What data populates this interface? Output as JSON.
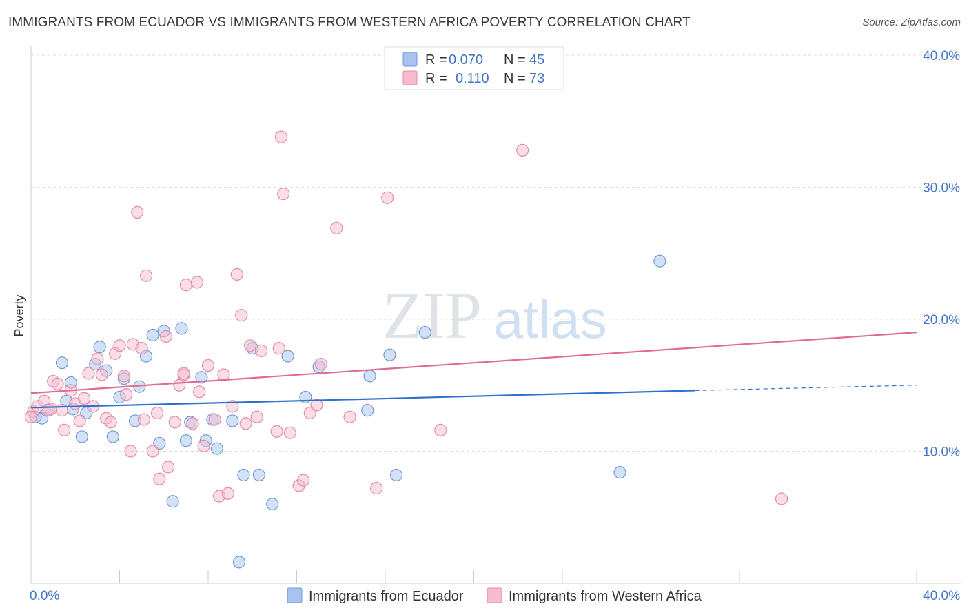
{
  "title": "IMMIGRANTS FROM ECUADOR VS IMMIGRANTS FROM WESTERN AFRICA POVERTY CORRELATION CHART",
  "source": "Source: ZipAtlas.com",
  "watermark": {
    "zip": "ZIP",
    "atlas": "atlas"
  },
  "legend": {
    "rows": [
      {
        "r_label": "R =",
        "r_value": "0.070",
        "n_label": "N =",
        "n_value": "45",
        "color": "#a8c4ee",
        "stroke": "#6f98d8"
      },
      {
        "r_label": "R =",
        "r_value": "0.110",
        "n_label": "N =",
        "n_value": "73",
        "color": "#f6bccd",
        "stroke": "#e58aa8"
      }
    ]
  },
  "chart_data": {
    "type": "scatter",
    "ylabel": "Poverty",
    "xlim": [
      0,
      40
    ],
    "ylim": [
      0,
      40
    ],
    "x_tick_labels": [
      "0.0%",
      "40.0%"
    ],
    "y_ticks": [
      10,
      20,
      30,
      40
    ],
    "y_tick_labels": [
      "10.0%",
      "20.0%",
      "30.0%",
      "40.0%"
    ],
    "grid": true,
    "series": [
      {
        "name": "Immigrants from Ecuador",
        "color": "#a8c4ee",
        "stroke": "#6f98d8",
        "line_color": "#2f6fcf",
        "trend": {
          "x0": 0,
          "y0": 13.3,
          "x1": 30,
          "y1": 14.6,
          "dash_to_x": 40,
          "dash_to_y": 15.0
        },
        "points": [
          [
            0.2,
            12.6
          ],
          [
            0.5,
            12.5
          ],
          [
            0.7,
            13.1
          ],
          [
            1.4,
            16.7
          ],
          [
            1.6,
            13.8
          ],
          [
            1.8,
            15.2
          ],
          [
            1.9,
            13.2
          ],
          [
            2.3,
            11.1
          ],
          [
            2.5,
            12.9
          ],
          [
            2.9,
            16.6
          ],
          [
            3.1,
            17.9
          ],
          [
            3.4,
            16.1
          ],
          [
            3.7,
            11.1
          ],
          [
            4.0,
            14.1
          ],
          [
            4.2,
            15.5
          ],
          [
            4.7,
            12.3
          ],
          [
            4.9,
            14.9
          ],
          [
            5.2,
            17.2
          ],
          [
            5.5,
            18.8
          ],
          [
            5.8,
            10.6
          ],
          [
            6.0,
            19.1
          ],
          [
            6.4,
            6.2
          ],
          [
            6.8,
            19.3
          ],
          [
            7.0,
            10.8
          ],
          [
            7.2,
            12.2
          ],
          [
            7.7,
            15.6
          ],
          [
            7.9,
            10.8
          ],
          [
            8.2,
            12.4
          ],
          [
            8.4,
            10.2
          ],
          [
            9.1,
            12.3
          ],
          [
            9.4,
            1.6
          ],
          [
            9.6,
            8.2
          ],
          [
            10.0,
            17.8
          ],
          [
            10.3,
            8.2
          ],
          [
            10.9,
            6.0
          ],
          [
            11.6,
            17.2
          ],
          [
            12.4,
            14.1
          ],
          [
            13.0,
            16.4
          ],
          [
            15.2,
            13.1
          ],
          [
            15.3,
            15.7
          ],
          [
            16.2,
            17.3
          ],
          [
            16.5,
            8.2
          ],
          [
            17.8,
            19.0
          ],
          [
            26.6,
            8.4
          ],
          [
            28.4,
            24.4
          ]
        ]
      },
      {
        "name": "Immigrants from Western Africa",
        "color": "#f6bccd",
        "stroke": "#e58aa8",
        "line_color": "#e06a93",
        "trend": {
          "x0": 0,
          "y0": 14.4,
          "x1": 40,
          "y1": 19.0
        },
        "points": [
          [
            0.1,
            13.0
          ],
          [
            0.3,
            13.4
          ],
          [
            0.6,
            13.8
          ],
          [
            0.9,
            13.2
          ],
          [
            1.0,
            15.3
          ],
          [
            1.2,
            15.1
          ],
          [
            1.4,
            13.1
          ],
          [
            1.5,
            11.6
          ],
          [
            1.8,
            14.6
          ],
          [
            2.0,
            13.6
          ],
          [
            2.2,
            12.3
          ],
          [
            2.4,
            14.0
          ],
          [
            2.6,
            15.9
          ],
          [
            2.8,
            13.4
          ],
          [
            3.0,
            17.0
          ],
          [
            3.2,
            15.8
          ],
          [
            3.4,
            12.5
          ],
          [
            3.6,
            12.2
          ],
          [
            3.8,
            17.4
          ],
          [
            4.0,
            18.0
          ],
          [
            4.2,
            15.7
          ],
          [
            4.3,
            14.3
          ],
          [
            4.5,
            10.0
          ],
          [
            4.6,
            18.1
          ],
          [
            4.8,
            28.1
          ],
          [
            5.0,
            17.8
          ],
          [
            5.1,
            12.4
          ],
          [
            5.2,
            23.3
          ],
          [
            5.5,
            10.0
          ],
          [
            5.7,
            12.9
          ],
          [
            5.8,
            7.9
          ],
          [
            6.1,
            18.7
          ],
          [
            6.2,
            8.8
          ],
          [
            6.5,
            12.2
          ],
          [
            6.7,
            15.0
          ],
          [
            6.9,
            15.8
          ],
          [
            7.0,
            22.6
          ],
          [
            7.3,
            12.1
          ],
          [
            7.5,
            22.8
          ],
          [
            7.6,
            14.5
          ],
          [
            7.8,
            10.4
          ],
          [
            8.0,
            16.5
          ],
          [
            8.3,
            12.4
          ],
          [
            8.5,
            6.6
          ],
          [
            8.7,
            15.8
          ],
          [
            8.9,
            6.8
          ],
          [
            9.1,
            13.4
          ],
          [
            9.3,
            23.4
          ],
          [
            9.5,
            20.3
          ],
          [
            9.7,
            12.1
          ],
          [
            9.9,
            18.0
          ],
          [
            10.2,
            12.6
          ],
          [
            10.4,
            17.6
          ],
          [
            11.1,
            11.5
          ],
          [
            11.2,
            17.8
          ],
          [
            11.4,
            29.5
          ],
          [
            11.3,
            33.8
          ],
          [
            11.7,
            11.4
          ],
          [
            12.1,
            7.4
          ],
          [
            12.3,
            7.8
          ],
          [
            12.6,
            12.9
          ],
          [
            12.9,
            13.5
          ],
          [
            13.1,
            16.6
          ],
          [
            13.8,
            26.9
          ],
          [
            14.4,
            12.6
          ],
          [
            15.6,
            7.2
          ],
          [
            16.1,
            29.2
          ],
          [
            18.5,
            11.6
          ],
          [
            22.2,
            32.8
          ],
          [
            33.9,
            6.4
          ],
          [
            0.0,
            12.6
          ],
          [
            0.8,
            13.1
          ],
          [
            6.9,
            15.9
          ]
        ]
      }
    ]
  }
}
